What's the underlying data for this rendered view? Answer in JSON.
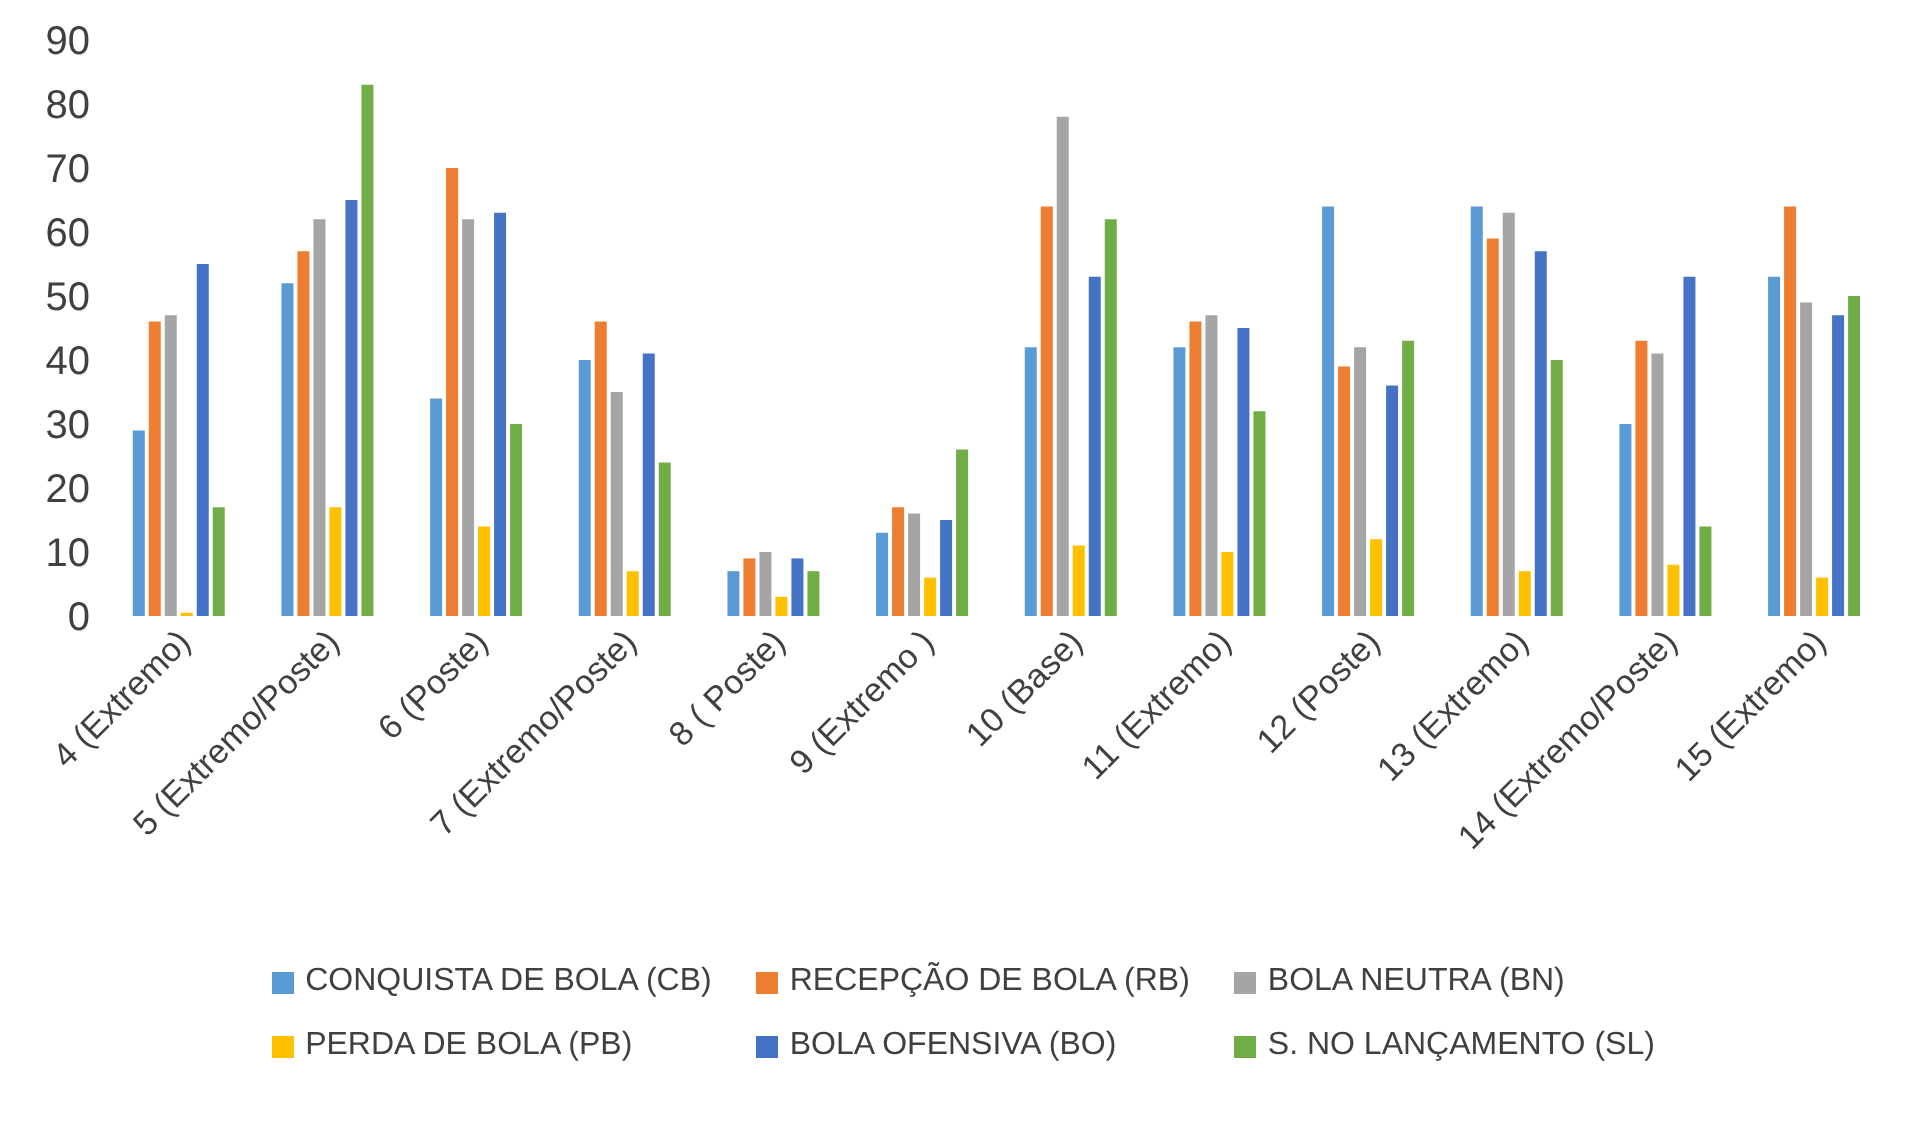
{
  "chart_data": {
    "type": "bar",
    "categories": [
      "4 (Extremo)",
      "5 (Extremo/Poste)",
      "6 (Poste)",
      "7 (Extremo/Poste)",
      "8 ( Poste)",
      "9 (Extremo )",
      "10 (Base)",
      "11 (Extremo)",
      "12 (Poste)",
      "13 (Extremo)",
      "14 (Extremo/Poste)",
      "15 (Extremo)"
    ],
    "series": [
      {
        "name": "CONQUISTA DE BOLA (CB)",
        "color": "#5b9bd5",
        "values": [
          29,
          52,
          34,
          40,
          7,
          13,
          42,
          42,
          64,
          64,
          30,
          53
        ]
      },
      {
        "name": "RECEPÇÃO DE BOLA (RB)",
        "color": "#ed7d31",
        "values": [
          46,
          57,
          70,
          46,
          9,
          17,
          64,
          46,
          39,
          59,
          43,
          64
        ]
      },
      {
        "name": "BOLA NEUTRA (BN)",
        "color": "#a5a5a5",
        "values": [
          47,
          62,
          62,
          35,
          10,
          16,
          78,
          47,
          42,
          63,
          41,
          49
        ]
      },
      {
        "name": "PERDA DE BOLA (PB)",
        "color": "#ffc000",
        "values": [
          0.5,
          17,
          14,
          7,
          3,
          6,
          11,
          10,
          12,
          7,
          8,
          6
        ]
      },
      {
        "name": "BOLA OFENSIVA (BO)",
        "color": "#4472c4",
        "values": [
          55,
          65,
          63,
          41,
          9,
          15,
          53,
          45,
          36,
          57,
          53,
          47
        ]
      },
      {
        "name": "S. NO LANÇAMENTO (SL)",
        "color": "#70ad47",
        "values": [
          17,
          83,
          30,
          24,
          7,
          26,
          62,
          32,
          43,
          40,
          14,
          50
        ]
      }
    ],
    "ylim": [
      0,
      90
    ],
    "yticks": [
      0,
      10,
      20,
      30,
      40,
      50,
      60,
      70,
      80,
      90
    ],
    "grid": false,
    "legend": "bottom"
  }
}
